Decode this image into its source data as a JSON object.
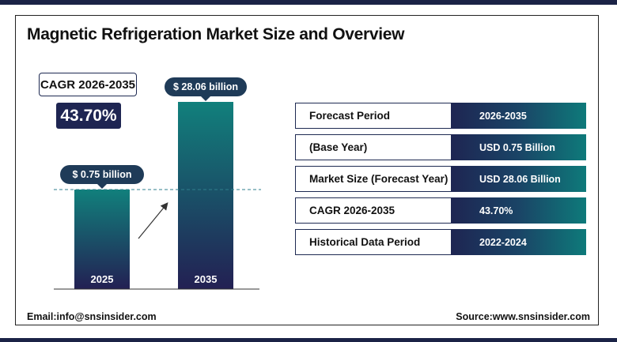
{
  "title": "Magnetic Refrigeration Market Size and Overview",
  "cagr": {
    "label": "CAGR 2026-2035",
    "value": "43.70%"
  },
  "chart_data": {
    "type": "bar",
    "categories": [
      "2025",
      "2035"
    ],
    "values": [
      0.75,
      28.06
    ],
    "data_labels": [
      "$ 0.75 billion",
      "$ 28.06 billion"
    ],
    "colors": {
      "bar_top": "#11807c",
      "bar_bottom": "#232053",
      "pill": "#1f3b58",
      "reference_line": "#2f7f8c"
    }
  },
  "table": {
    "rows": [
      {
        "label": "Forecast Period",
        "value": "2026-2035"
      },
      {
        "label": "(Base Year)",
        "value": "USD  0.75 Billion"
      },
      {
        "label": "Market Size (Forecast Year)",
        "value": "USD 28.06 Billion"
      },
      {
        "label": "CAGR 2026-2035",
        "value": "43.70%"
      },
      {
        "label": "Historical Data Period",
        "value": "2022-2024"
      }
    ]
  },
  "footer": {
    "email": "Email:info@snsinsider.com",
    "source": "Source:www.snsinsider.com"
  }
}
